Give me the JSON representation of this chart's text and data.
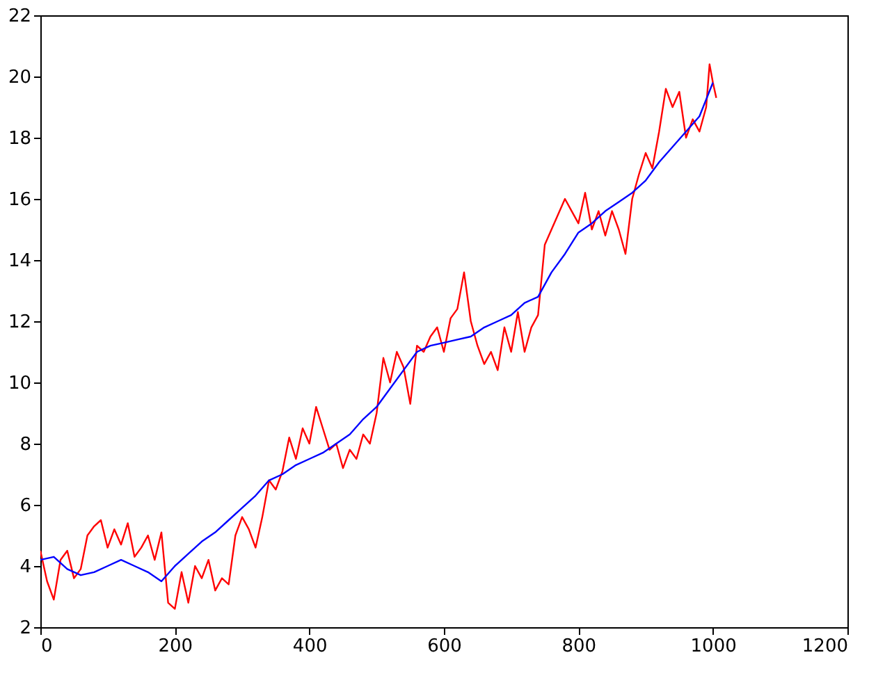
{
  "chart_data": {
    "type": "line",
    "xlim": [
      0,
      1200
    ],
    "ylim": [
      2,
      22
    ],
    "xticks": [
      0,
      200,
      400,
      600,
      800,
      1000,
      1200
    ],
    "yticks": [
      2,
      4,
      6,
      8,
      10,
      12,
      14,
      16,
      18,
      20,
      22
    ],
    "grid": false,
    "legend": false,
    "marker": "none",
    "line_style": "solid",
    "series": [
      {
        "color": "#ff0000",
        "x": [
          0,
          10,
          20,
          30,
          40,
          50,
          60,
          70,
          80,
          90,
          100,
          110,
          120,
          130,
          140,
          150,
          160,
          170,
          180,
          190,
          200,
          210,
          220,
          230,
          240,
          250,
          260,
          270,
          280,
          290,
          300,
          310,
          320,
          330,
          340,
          350,
          360,
          370,
          380,
          390,
          400,
          410,
          420,
          430,
          440,
          450,
          460,
          470,
          480,
          490,
          500,
          510,
          520,
          530,
          540,
          550,
          560,
          570,
          580,
          590,
          600,
          610,
          620,
          630,
          640,
          650,
          660,
          670,
          680,
          690,
          700,
          710,
          720,
          730,
          740,
          750,
          760,
          770,
          780,
          790,
          800,
          810,
          820,
          830,
          840,
          850,
          860,
          870,
          880,
          890,
          900,
          910,
          920,
          930,
          940,
          950,
          960,
          970,
          980,
          990,
          995,
          1000,
          1005
        ],
        "values": [
          4.5,
          3.5,
          2.9,
          4.2,
          4.5,
          3.6,
          3.9,
          5.0,
          5.3,
          5.5,
          4.6,
          5.2,
          4.7,
          5.4,
          4.3,
          4.6,
          5.0,
          4.2,
          5.1,
          2.8,
          2.6,
          3.8,
          2.8,
          4.0,
          3.6,
          4.2,
          3.2,
          3.6,
          3.4,
          5.0,
          5.6,
          5.2,
          4.6,
          5.6,
          6.8,
          6.5,
          7.1,
          8.2,
          7.5,
          8.5,
          8.0,
          9.2,
          8.5,
          7.8,
          8.0,
          7.2,
          7.8,
          7.5,
          8.3,
          8.0,
          9.0,
          10.8,
          10.0,
          11.0,
          10.5,
          9.3,
          11.2,
          11.0,
          11.5,
          11.8,
          11.0,
          12.1,
          12.4,
          13.6,
          12.0,
          11.2,
          10.6,
          11.0,
          10.4,
          11.8,
          11.0,
          12.3,
          11.0,
          11.8,
          12.2,
          14.5,
          15.0,
          15.5,
          16.0,
          15.6,
          15.2,
          16.2,
          15.0,
          15.6,
          14.8,
          15.6,
          15.0,
          14.2,
          16.0,
          16.8,
          17.5,
          17.0,
          18.2,
          19.6,
          19.0,
          19.5,
          18.0,
          18.6,
          18.2,
          19.0,
          20.4,
          19.8,
          19.3
        ]
      },
      {
        "color": "#0000ff",
        "x": [
          0,
          20,
          40,
          60,
          80,
          100,
          120,
          140,
          160,
          180,
          200,
          220,
          240,
          260,
          280,
          300,
          320,
          340,
          360,
          380,
          400,
          420,
          440,
          460,
          480,
          500,
          520,
          540,
          560,
          580,
          600,
          620,
          640,
          660,
          680,
          700,
          720,
          740,
          760,
          780,
          800,
          820,
          840,
          860,
          880,
          900,
          920,
          940,
          960,
          980,
          1000
        ],
        "values": [
          4.2,
          4.3,
          3.9,
          3.7,
          3.8,
          4.0,
          4.2,
          4.0,
          3.8,
          3.5,
          4.0,
          4.4,
          4.8,
          5.1,
          5.5,
          5.9,
          6.3,
          6.8,
          7.0,
          7.3,
          7.5,
          7.7,
          8.0,
          8.3,
          8.8,
          9.2,
          9.8,
          10.4,
          11.0,
          11.2,
          11.3,
          11.4,
          11.5,
          11.8,
          12.0,
          12.2,
          12.6,
          12.8,
          13.6,
          14.2,
          14.9,
          15.2,
          15.6,
          15.9,
          16.2,
          16.6,
          17.2,
          17.7,
          18.2,
          18.7,
          19.8
        ]
      }
    ]
  }
}
